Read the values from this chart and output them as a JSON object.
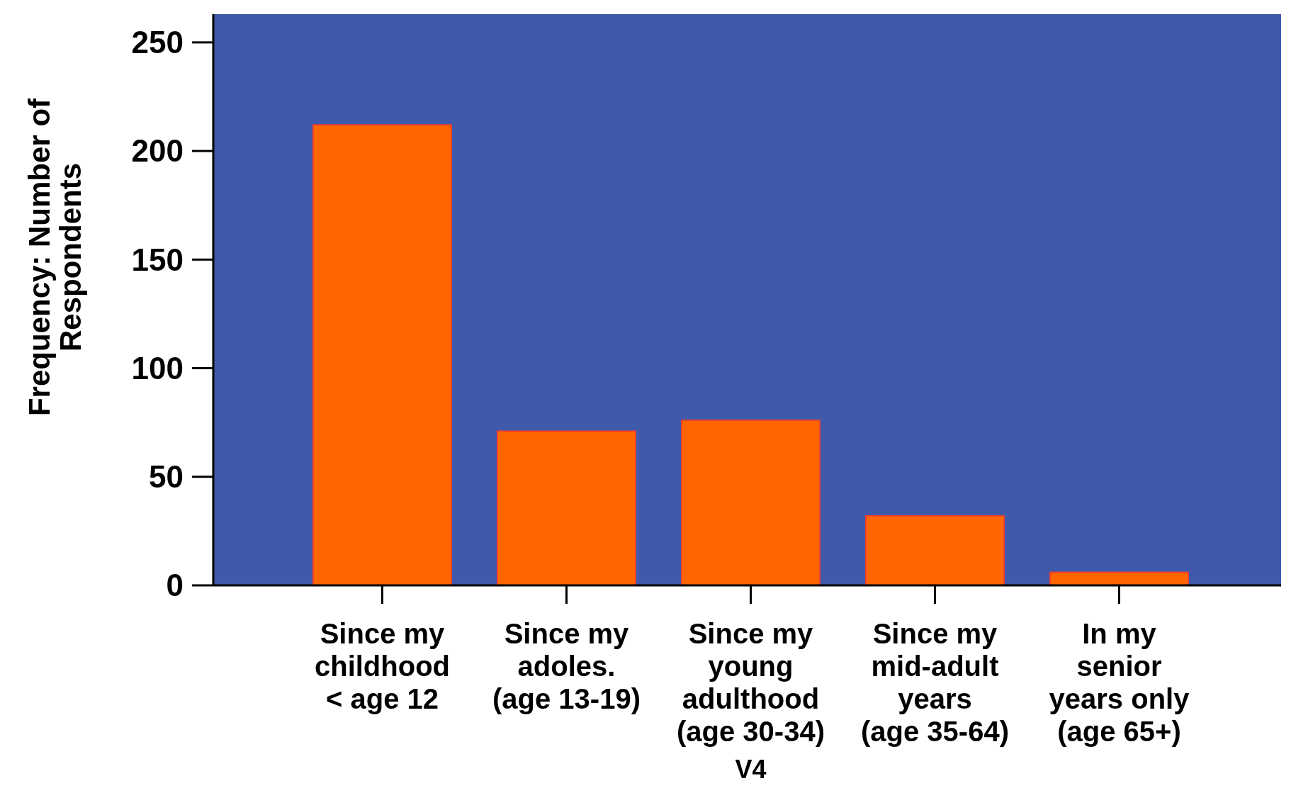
{
  "chart_data": {
    "type": "bar",
    "xlabel": "V4",
    "ylabel": "Frequency: Number of\nRespondents",
    "categories": [
      "Since my\nchildhood\n< age 12",
      "Since my\nadoles.\n(age 13-19)",
      "Since my\nyoung\nadulthood\n(age 30-34)",
      "Since my\nmid-adult\nyears\n(age 35-64)",
      "In my\nsenior\nyears only\n(age 65+)"
    ],
    "values": [
      212,
      71,
      76,
      32,
      6
    ],
    "color": "#ff6600",
    "ylim": [
      0,
      263
    ],
    "yticks": [
      0,
      50,
      100,
      150,
      200,
      250
    ],
    "grid": false
  }
}
